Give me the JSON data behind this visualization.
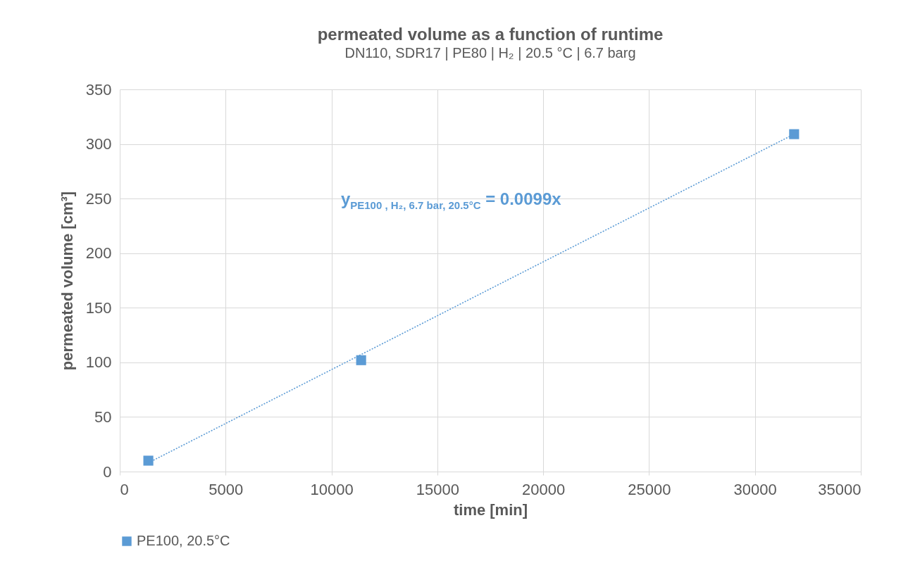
{
  "chart_data": {
    "type": "scatter",
    "title": "permeated volume as a function of runtime",
    "subtitle": "DN110, SDR17 | PE80 | H₂ | 20.5 °C | 6.7 barg",
    "xlabel": "time [min]",
    "ylabel": "permeated volume [cm³]",
    "x": [
      1350,
      11400,
      31850
    ],
    "series": [
      {
        "name": "PE100, 20.5°C",
        "color": "#5b9bd5",
        "values": [
          10,
          102,
          309
        ],
        "marker": "square"
      },
      {
        "type": "line",
        "color": "#5b9bd5",
        "x": [
          1350,
          31850
        ],
        "values": [
          8,
          309
        ],
        "line_style": "dotted"
      }
    ],
    "annotations": [
      "y$_{PE100 , H₂, 6.7 bar, 20.5°C}$ = 0.0099x"
    ],
    "xlim": [
      0,
      35000
    ],
    "xticks": [
      0,
      5000,
      10000,
      15000,
      20000,
      25000,
      30000,
      35000
    ],
    "ylim": [
      0,
      350
    ],
    "yticks": [
      0,
      50,
      100,
      150,
      200,
      250,
      300,
      350
    ],
    "grid": true,
    "legend": "bottom"
  }
}
